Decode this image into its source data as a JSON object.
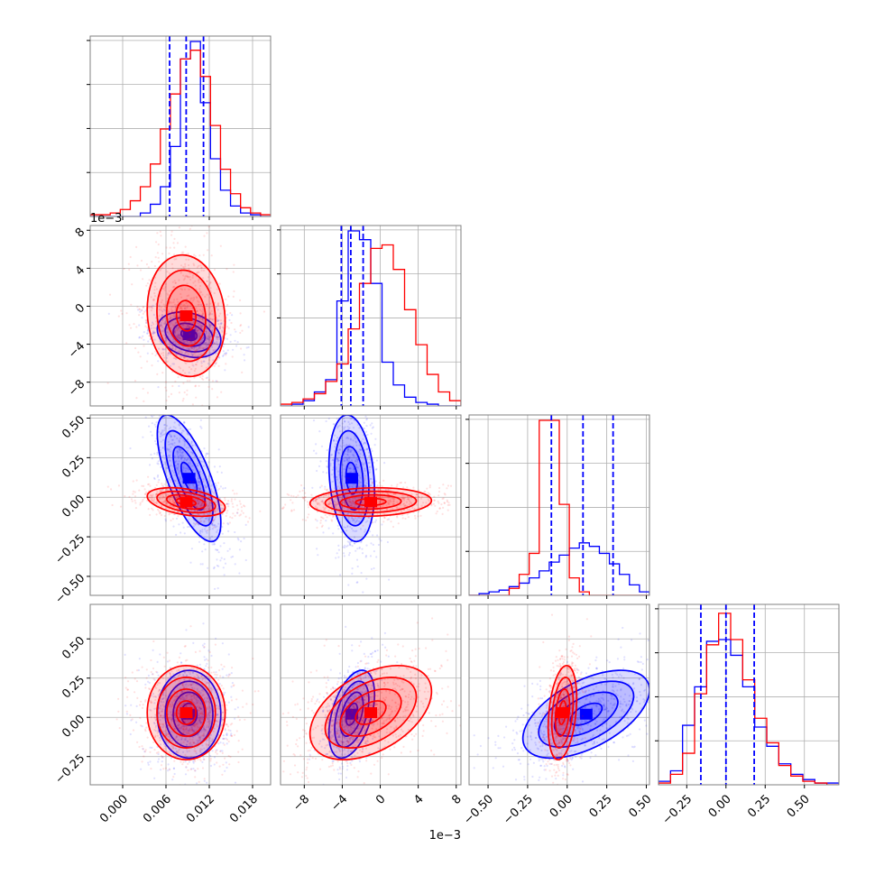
{
  "chart_data": {
    "type": "corner",
    "title": "",
    "colors": {
      "blue": "#0000ff",
      "red": "#ff0000",
      "grid": "#b0b0b0",
      "frame": "#808080"
    },
    "grid": true,
    "parameters": [
      {
        "range": [
          -0.0045,
          0.0205
        ],
        "ticks": [
          0.0,
          0.006,
          0.012,
          0.018
        ],
        "tick_labels": [
          "0.000",
          "0.006",
          "0.012",
          "0.018"
        ],
        "offset_text": ""
      },
      {
        "range": [
          -0.0105,
          0.0085
        ],
        "ticks": [
          -0.008,
          -0.004,
          0.0,
          0.004,
          0.008
        ],
        "tick_labels": [
          "−8",
          "−4",
          "0",
          "4",
          "8"
        ],
        "offset_text": "1e−3"
      },
      {
        "range": [
          -0.62,
          0.52
        ],
        "ticks": [
          -0.5,
          -0.25,
          0.0,
          0.25,
          0.5
        ],
        "tick_labels": [
          "−0.50",
          "−0.25",
          "0.00",
          "0.25",
          "0.50"
        ],
        "offset_text": ""
      },
      {
        "range": [
          -0.43,
          0.72
        ],
        "ticks": [
          -0.25,
          0.0,
          0.25,
          0.5
        ],
        "tick_labels": [
          "−0.25",
          "0.00",
          "0.25",
          "0.50"
        ],
        "offset_text": ""
      }
    ],
    "quantiles_blue": [
      [
        0.0065,
        0.0088,
        0.0112
      ],
      [
        -0.0041,
        -0.0031,
        -0.0018
      ],
      [
        -0.1,
        0.1,
        0.29
      ],
      [
        -0.16,
        0.0,
        0.18
      ]
    ],
    "series": [
      {
        "color": "blue",
        "means": [
          0.0092,
          -0.003,
          0.12,
          0.02
        ],
        "sds": [
          0.0022,
          0.0012,
          0.2,
          0.14
        ],
        "corr": {
          "0-1": -0.25,
          "0-2": -0.7,
          "0-3": 0.0,
          "1-2": -0.2,
          "1-3": 0.45,
          "2-3": 0.55
        }
      },
      {
        "color": "red",
        "means": [
          0.0088,
          -0.001,
          -0.03,
          0.03
        ],
        "sds": [
          0.0027,
          0.0032,
          0.045,
          0.15
        ],
        "corr": {
          "0-1": -0.1,
          "0-2": -0.4,
          "0-3": 0.0,
          "1-2": 0.1,
          "1-3": 0.45,
          "2-3": 0.3
        }
      }
    ],
    "histograms": [
      {
        "blue": [
          0,
          0,
          0,
          0,
          0,
          2,
          7,
          17,
          40,
          90,
          100,
          65,
          33,
          15,
          6,
          2,
          1,
          0
        ],
        "red": [
          1,
          1,
          2,
          4,
          9,
          17,
          30,
          50,
          70,
          90,
          95,
          80,
          52,
          27,
          13,
          5,
          2,
          1
        ]
      },
      {
        "blue": [
          0,
          1,
          3,
          8,
          15,
          60,
          100,
          95,
          70,
          25,
          12,
          5,
          2,
          1,
          0,
          0
        ],
        "red": [
          1,
          2,
          4,
          7,
          14,
          24,
          44,
          70,
          90,
          92,
          78,
          55,
          35,
          18,
          8,
          3
        ]
      },
      {
        "blue": [
          0,
          1,
          2,
          3,
          5,
          7,
          10,
          14,
          19,
          23,
          27,
          30,
          28,
          24,
          18,
          12,
          6,
          2
        ],
        "red": [
          0,
          0,
          0,
          0,
          4,
          12,
          24,
          100,
          100,
          52,
          10,
          2,
          0,
          0,
          0,
          0,
          0,
          0
        ]
      },
      {
        "blue": [
          2,
          8,
          34,
          56,
          82,
          83,
          74,
          56,
          33,
          22,
          12,
          6,
          3,
          1,
          1
        ],
        "red": [
          1,
          6,
          18,
          52,
          80,
          98,
          83,
          60,
          38,
          24,
          11,
          5,
          2,
          1,
          0
        ]
      }
    ]
  }
}
